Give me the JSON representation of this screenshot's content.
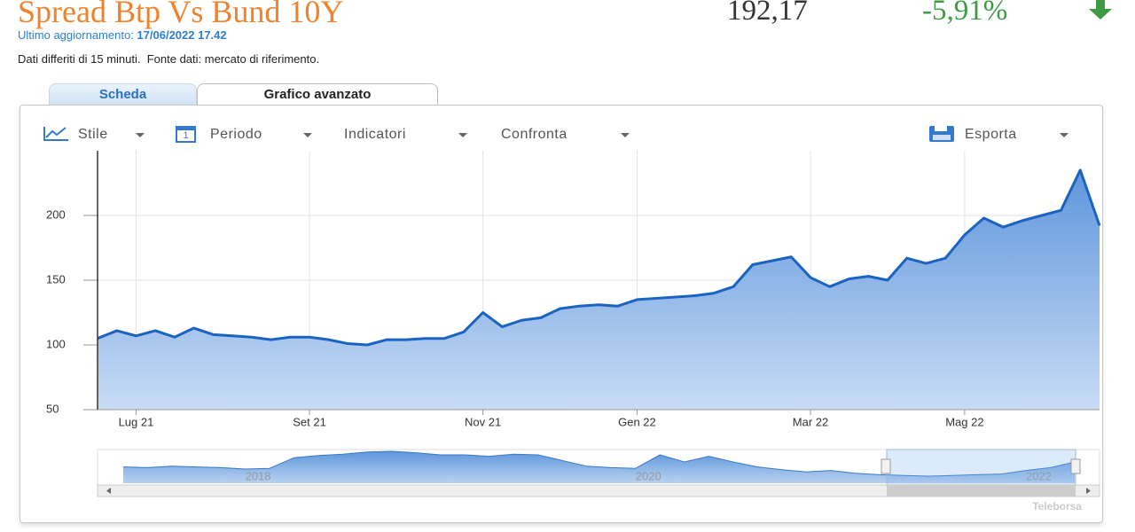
{
  "header": {
    "title": "Spread Btp Vs Bund 10Y",
    "price": "192,17",
    "change": "-5,91%",
    "update_label": "Ultimo aggiornamento:",
    "update_date": "17/06/2022 17.42",
    "note": "Dati differiti di 15 minuti.  Fonte dati: mercato di riferimento."
  },
  "tabs": [
    "Scheda",
    "Grafico avanzato"
  ],
  "toolbar": [
    "Stile",
    "Periodo",
    "Indicatori",
    "Confronta",
    "Esporta"
  ],
  "watermark": "Teleborsa",
  "chart_data": {
    "type": "area",
    "categories": [
      null,
      null,
      "Lug 21",
      null,
      null,
      null,
      null,
      null,
      null,
      null,
      null,
      "Set 21",
      null,
      null,
      null,
      null,
      null,
      null,
      null,
      null,
      "Nov 21",
      null,
      null,
      null,
      null,
      null,
      null,
      null,
      "Gen 22",
      null,
      null,
      null,
      null,
      null,
      null,
      null,
      null,
      "Mar 22",
      null,
      null,
      null,
      null,
      null,
      null,
      null,
      "Mag 22",
      null,
      null,
      null,
      null,
      null,
      null,
      null
    ],
    "values": [
      105,
      111,
      107,
      111,
      106,
      113,
      108,
      107,
      106,
      104,
      106,
      106,
      104,
      101,
      100,
      104,
      104,
      105,
      105,
      110,
      125,
      114,
      119,
      121,
      128,
      130,
      131,
      130,
      135,
      136,
      137,
      138,
      140,
      145,
      162,
      165,
      168,
      152,
      145,
      151,
      153,
      150,
      167,
      163,
      167,
      185,
      198,
      191,
      196,
      200,
      204,
      235,
      192.17
    ],
    "color": "#1a63c0",
    "ylim": [
      50,
      250
    ],
    "yticks": [
      50,
      100,
      150,
      200
    ],
    "grid": true
  },
  "navigator": {
    "type": "area",
    "categories": [
      null,
      null,
      null,
      null,
      null,
      "2018",
      null,
      null,
      null,
      null,
      null,
      null,
      null,
      null,
      null,
      null,
      null,
      null,
      null,
      null,
      null,
      "2020",
      null,
      null,
      null,
      null,
      null,
      null,
      null,
      null,
      null,
      null,
      null,
      null,
      null,
      null,
      null,
      "2022",
      null,
      null
    ],
    "values": [
      165,
      160,
      170,
      165,
      160,
      150,
      155,
      230,
      245,
      255,
      270,
      275,
      265,
      250,
      250,
      240,
      255,
      250,
      210,
      170,
      160,
      155,
      250,
      200,
      240,
      200,
      165,
      145,
      130,
      140,
      120,
      110,
      105,
      100,
      105,
      110,
      115,
      140,
      160,
      200
    ],
    "color": "#3a78c8"
  }
}
